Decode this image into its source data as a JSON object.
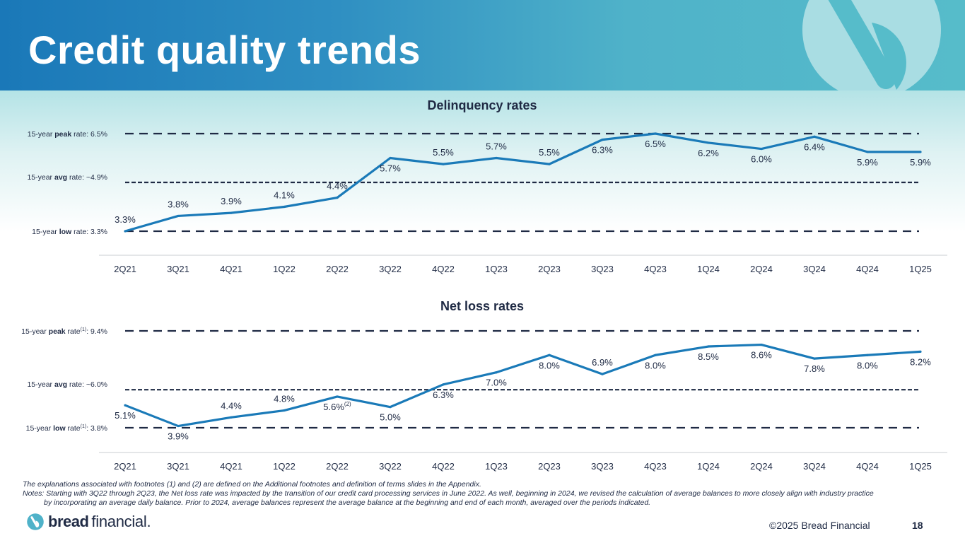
{
  "page": {
    "title": "Credit quality trends",
    "notes": [
      "The explanations associated with footnotes (1) and (2) are defined on the Additional footnotes and definition of terms slides in the Appendix.",
      "Notes: Starting with 3Q22 through 2Q23, the Net loss rate was impacted by the transition of our credit card processing services in June 2022.  As well, beginning in 2024, we revised the calculation of average balances to more closely align with industry practice",
      "by incorporating an average daily balance. Prior to 2024, average balances represent the average balance at the beginning and end of each month, averaged over the periods indicated."
    ],
    "brand_bold": "bread",
    "brand_light": "financial.",
    "copyright": "©2025 Bread Financial",
    "page_number": "18"
  },
  "colors": {
    "line": "#1a7ab8",
    "reference": "#1f2a44",
    "text": "#1f2a44",
    "header_start": "#1a78b8",
    "header_end": "#56bcca"
  },
  "chart_data": [
    {
      "type": "line",
      "title": "Delinquency rates",
      "categories": [
        "2Q21",
        "3Q21",
        "4Q21",
        "1Q22",
        "2Q22",
        "3Q22",
        "4Q22",
        "1Q23",
        "2Q23",
        "3Q23",
        "4Q23",
        "1Q24",
        "2Q24",
        "3Q24",
        "4Q24",
        "1Q25"
      ],
      "series": [
        {
          "name": "Delinquency rate",
          "values": [
            3.3,
            3.8,
            3.9,
            4.1,
            4.4,
            5.7,
            5.5,
            5.7,
            5.5,
            6.3,
            6.5,
            6.2,
            6.0,
            6.4,
            5.9,
            5.9
          ]
        }
      ],
      "data_labels": [
        "3.3%",
        "3.8%",
        "3.9%",
        "4.1%",
        "4.4%",
        "5.7%",
        "5.5%",
        "5.7%",
        "5.5%",
        "6.3%",
        "6.5%",
        "6.2%",
        "6.0%",
        "6.4%",
        "5.9%",
        "5.9%"
      ],
      "label_positions": [
        "above",
        "above",
        "above",
        "above",
        "above",
        "below",
        "above",
        "above",
        "above",
        "below",
        "below",
        "below",
        "below",
        "below",
        "below",
        "below"
      ],
      "label_superscripts": [
        "",
        "",
        "",
        "",
        "",
        "",
        "",
        "",
        "",
        "",
        "",
        "",
        "",
        "",
        "",
        ""
      ],
      "reference_lines": [
        {
          "prefix": "15-year ",
          "bold": "peak",
          "suffix": " rate",
          "sup": "",
          "value_text": ": 6.5%",
          "value": 6.5,
          "style": "long-dash"
        },
        {
          "prefix": "15-year ",
          "bold": "avg",
          "suffix": " rate",
          "sup": "",
          "value_text": ": ~4.9%",
          "value": 4.9,
          "style": "short-dash"
        },
        {
          "prefix": "15-year ",
          "bold": "low",
          "suffix": " rate",
          "sup": "",
          "value_text": ": 3.3%",
          "value": 3.3,
          "style": "long-dash"
        }
      ],
      "ylim": [
        3.3,
        6.5
      ],
      "xlabel": "",
      "ylabel": "",
      "grid": false,
      "legend": "none"
    },
    {
      "type": "line",
      "title": "Net loss rates",
      "categories": [
        "2Q21",
        "3Q21",
        "4Q21",
        "1Q22",
        "2Q22",
        "3Q22",
        "4Q22",
        "1Q23",
        "2Q23",
        "3Q23",
        "4Q23",
        "1Q24",
        "2Q24",
        "3Q24",
        "4Q24",
        "1Q25"
      ],
      "series": [
        {
          "name": "Net loss rate",
          "values": [
            5.1,
            3.9,
            4.4,
            4.8,
            5.6,
            5.0,
            6.3,
            7.0,
            8.0,
            6.9,
            8.0,
            8.5,
            8.6,
            7.8,
            8.0,
            8.2
          ]
        }
      ],
      "data_labels": [
        "5.1%",
        "3.9%",
        "4.4%",
        "4.8%",
        "5.6%",
        "5.0%",
        "6.3%",
        "7.0%",
        "8.0%",
        "6.9%",
        "8.0%",
        "8.5%",
        "8.6%",
        "7.8%",
        "8.0%",
        "8.2%"
      ],
      "label_positions": [
        "below",
        "below",
        "above",
        "above",
        "below",
        "below",
        "below",
        "below",
        "below",
        "above",
        "below",
        "below",
        "below",
        "below",
        "below",
        "below"
      ],
      "label_superscripts": [
        "",
        "",
        "",
        "",
        "(2)",
        "",
        "",
        "",
        "",
        "",
        "",
        "",
        "",
        "",
        "",
        ""
      ],
      "reference_lines": [
        {
          "prefix": "15-year ",
          "bold": "peak",
          "suffix": " rate",
          "sup": "(1)",
          "value_text": ": 9.4%",
          "value": 9.4,
          "style": "long-dash"
        },
        {
          "prefix": "15-year ",
          "bold": "avg",
          "suffix": " rate",
          "sup": "",
          "value_text": ": ~6.0%",
          "value": 6.0,
          "style": "short-dash"
        },
        {
          "prefix": "15-year ",
          "bold": "low",
          "suffix": " rate",
          "sup": "(1)",
          "value_text": ": 3.8%",
          "value": 3.8,
          "style": "long-dash"
        }
      ],
      "ylim": [
        3.8,
        9.4
      ],
      "xlabel": "",
      "ylabel": "",
      "grid": false,
      "legend": "none"
    }
  ]
}
